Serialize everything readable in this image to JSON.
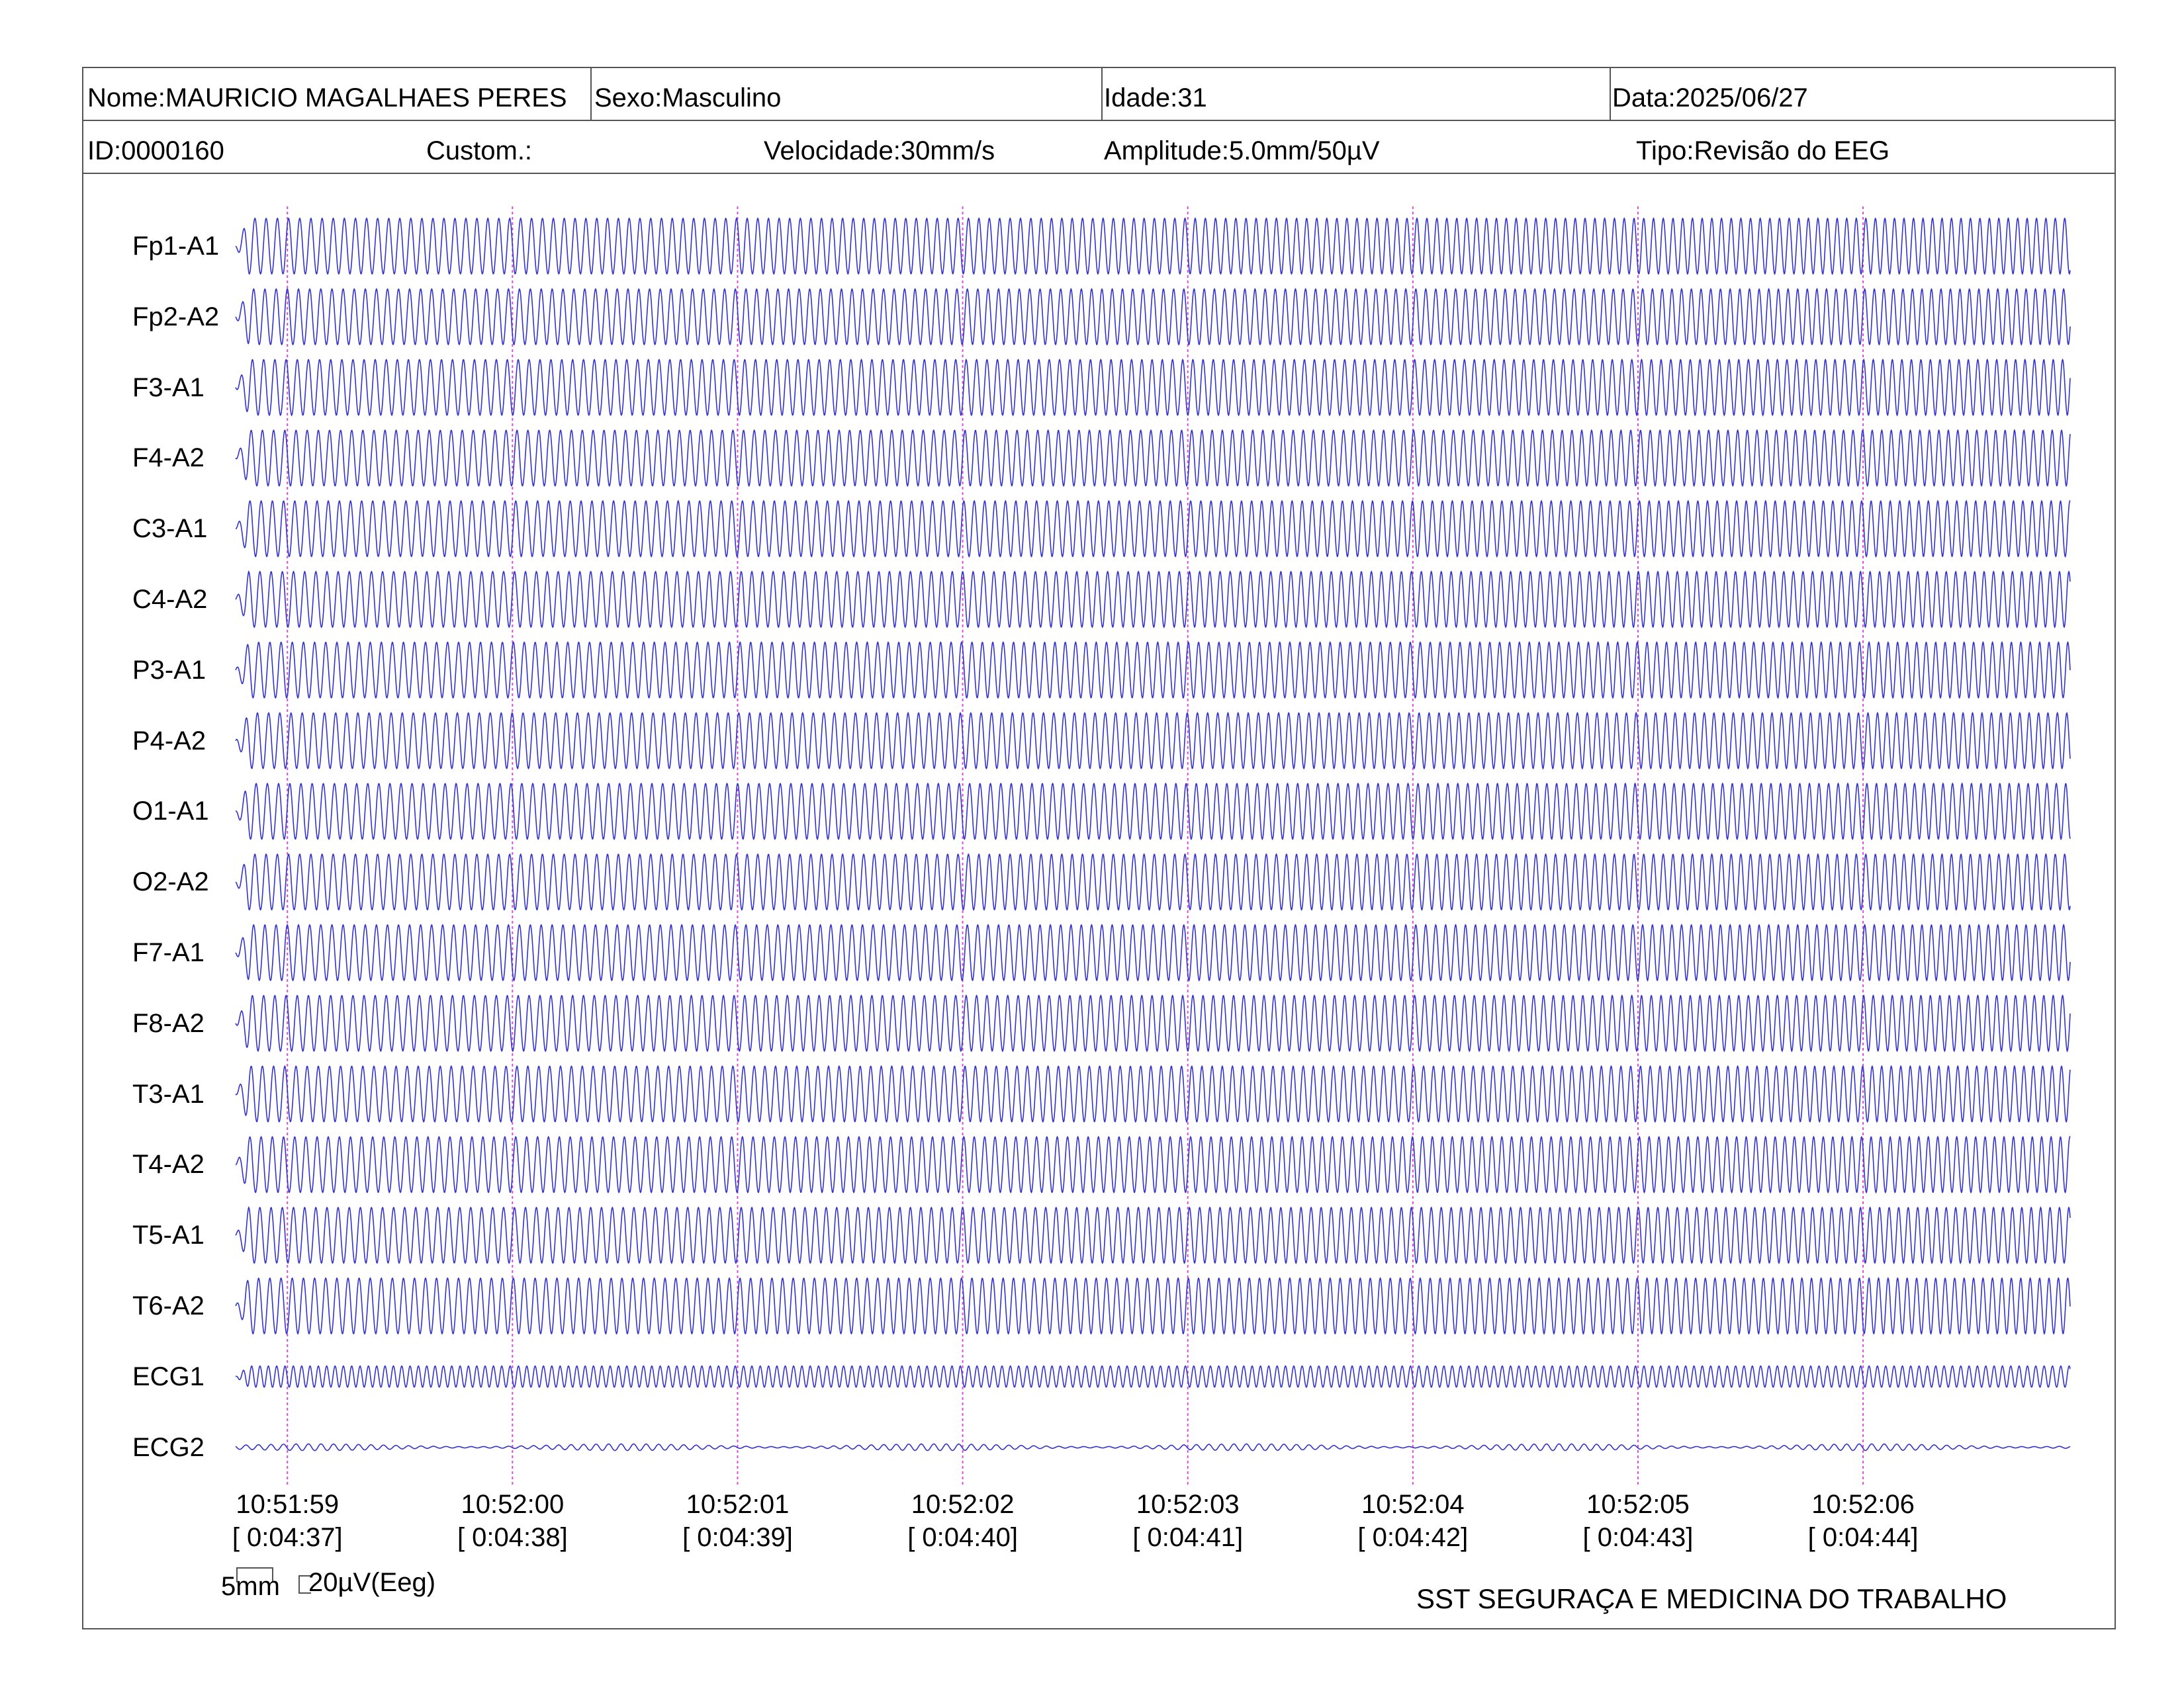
{
  "header": {
    "name": "Nome:MAURICIO MAGALHAES PERES",
    "sex": "Sexo:Masculino",
    "age": "Idade:31",
    "date": "Data:2025/06/27",
    "id": "ID:0000160",
    "custom": "Custom.:",
    "speed": "Velocidade:30mm/s",
    "amplitude": "Amplitude:5.0mm/50µV",
    "type": "Tipo:Revisão do EEG"
  },
  "scale": {
    "mm_label": "5mm",
    "uv_label": "20µV(Eeg)"
  },
  "footer": {
    "organization": "SST SEGURAÇA E MEDICINA DO TRABALHO"
  },
  "colors": {
    "trace": "#3333cc",
    "second_marker": "#d84fd8",
    "border": "#555555"
  },
  "chart_data": {
    "type": "line",
    "channels": [
      "Fp1-A1",
      "Fp2-A2",
      "F3-A1",
      "F4-A2",
      "C3-A1",
      "C4-A2",
      "P3-A1",
      "P4-A2",
      "O1-A1",
      "O2-A2",
      "F7-A1",
      "F8-A2",
      "T3-A1",
      "T4-A2",
      "T5-A1",
      "T6-A2",
      "ECG1",
      "ECG2"
    ],
    "time_ticks": [
      {
        "clock": "10:51:59",
        "elapsed": "[ 0:04:37]"
      },
      {
        "clock": "10:52:00",
        "elapsed": "[ 0:04:38]"
      },
      {
        "clock": "10:52:01",
        "elapsed": "[ 0:04:39]"
      },
      {
        "clock": "10:52:02",
        "elapsed": "[ 0:04:40]"
      },
      {
        "clock": "10:52:03",
        "elapsed": "[ 0:04:41]"
      },
      {
        "clock": "10:52:04",
        "elapsed": "[ 0:04:42]"
      },
      {
        "clock": "10:52:05",
        "elapsed": "[ 0:04:43]"
      },
      {
        "clock": "10:52:06",
        "elapsed": "[ 0:04:44]"
      }
    ],
    "eeg_frequency_start_hz": 20,
    "eeg_frequency_end_hz": 24,
    "ecg1_frequency_hz": 27,
    "ecg2_frequency_hz": 18,
    "seconds_shown": 8.15,
    "seconds_before_first_tick": 0.23,
    "grid": false
  }
}
